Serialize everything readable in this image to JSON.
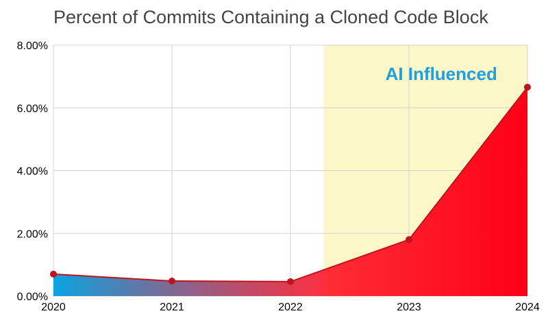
{
  "chart_data": {
    "type": "area",
    "title": "Percent of Commits Containing a Cloned Code Block",
    "xlabel": "",
    "ylabel": "",
    "x": [
      "2020",
      "2021",
      "2022",
      "2023",
      "2024"
    ],
    "series": [
      {
        "values": [
          0.7,
          0.48,
          0.46,
          1.8,
          6.66
        ]
      }
    ],
    "y_tick_labels": [
      "0.00%",
      "2.00%",
      "4.00%",
      "6.00%",
      "8.00%"
    ],
    "ylim": [
      0,
      8
    ],
    "grid": true,
    "highlight_region": {
      "label": "AI Influenced",
      "x_start": 2022.28,
      "x_end": 2024
    },
    "colors": {
      "area_start": "#0aa3e3",
      "area_end": "#ff0015",
      "line": "#c0141c",
      "marker": "#c0141c",
      "highlight_fill": "#fbf7c8",
      "annotation": "#1e9fe0",
      "grid": "#d3d3d3",
      "title": "#444444"
    }
  }
}
